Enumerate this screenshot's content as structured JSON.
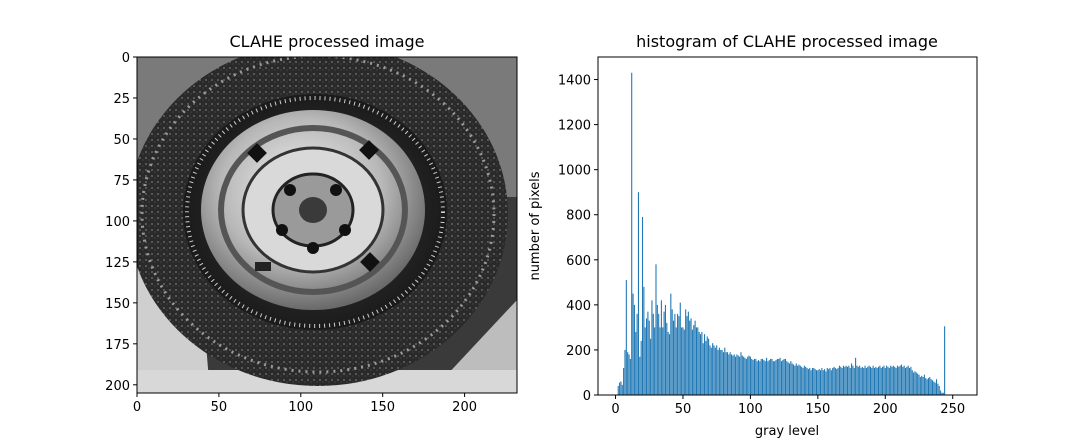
{
  "chart_data": [
    {
      "type": "image",
      "title": "CLAHE processed image",
      "xlim": [
        0,
        232
      ],
      "ylim": [
        205,
        0
      ],
      "xticks": [
        0,
        50,
        100,
        150,
        200
      ],
      "yticks": [
        0,
        25,
        50,
        75,
        100,
        125,
        150,
        175,
        200
      ],
      "content": "grayscale photo of a tire with hubcap (contrast-enhanced)"
    },
    {
      "type": "bar",
      "title": "histogram of CLAHE processed image",
      "xlabel": "gray level",
      "ylabel": "number of pixels",
      "xlim": [
        -13,
        268
      ],
      "ylim": [
        0,
        1500
      ],
      "xticks": [
        0,
        50,
        100,
        150,
        200,
        250
      ],
      "yticks": [
        0,
        200,
        400,
        600,
        800,
        1000,
        1200,
        1400
      ],
      "color": "#1f77b4",
      "x_start": 0,
      "values": [
        0,
        0,
        40,
        55,
        60,
        45,
        120,
        200,
        510,
        190,
        180,
        160,
        1430,
        450,
        400,
        280,
        360,
        900,
        170,
        240,
        790,
        480,
        300,
        340,
        370,
        330,
        250,
        420,
        360,
        300,
        580,
        400,
        360,
        300,
        420,
        300,
        370,
        400,
        320,
        280,
        270,
        450,
        380,
        330,
        360,
        300,
        360,
        350,
        410,
        300,
        300,
        290,
        380,
        350,
        370,
        330,
        340,
        290,
        310,
        330,
        300,
        300,
        280,
        270,
        280,
        230,
        270,
        240,
        260,
        250,
        220,
        210,
        230,
        220,
        210,
        220,
        200,
        210,
        200,
        200,
        190,
        210,
        190,
        190,
        180,
        190,
        180,
        175,
        180,
        170,
        180,
        175,
        170,
        190,
        175,
        170,
        165,
        160,
        170,
        175,
        170,
        160,
        155,
        160,
        160,
        150,
        155,
        150,
        160,
        160,
        155,
        150,
        165,
        150,
        155,
        160,
        160,
        150,
        150,
        155,
        160,
        160,
        165,
        150,
        155,
        160,
        160,
        150,
        145,
        140,
        150,
        140,
        135,
        130,
        140,
        130,
        135,
        130,
        125,
        120,
        130,
        125,
        120,
        115,
        120,
        110,
        120,
        120,
        115,
        110,
        110,
        115,
        110,
        120,
        110,
        115,
        105,
        120,
        115,
        120,
        110,
        120,
        125,
        120,
        115,
        120,
        130,
        125,
        120,
        130,
        125,
        130,
        125,
        130,
        120,
        140,
        130,
        120,
        165,
        130,
        125,
        130,
        120,
        125,
        120,
        130,
        120,
        125,
        130,
        125,
        120,
        130,
        120,
        125,
        120,
        125,
        130,
        120,
        125,
        130,
        120,
        130,
        125,
        120,
        130,
        125,
        130,
        125,
        120,
        130,
        125,
        130,
        135,
        125,
        130,
        120,
        125,
        130,
        120,
        125,
        110,
        100,
        105,
        100,
        95,
        90,
        80,
        85,
        80,
        90,
        75,
        70,
        75,
        80,
        70,
        65,
        60,
        55,
        70,
        50,
        40,
        20,
        10,
        10,
        305,
        0
      ]
    }
  ]
}
